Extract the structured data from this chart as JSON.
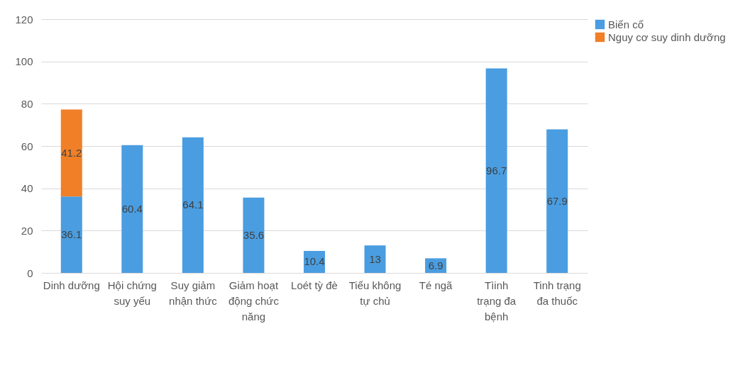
{
  "chart_data": {
    "type": "bar",
    "stacked": true,
    "categories": [
      "Dinh dưỡng",
      "Hội chứng suy yếu",
      "Suy giảm nhận thức",
      "Giảm hoạt động chức năng",
      "Loét tỳ đè",
      "Tiểu không tự chủ",
      "Té ngã",
      "Tìinh trạng đa bệnh",
      "Tinh trạng đa thuốc"
    ],
    "series": [
      {
        "name": "Biến cố",
        "color": "#4a9de0",
        "values": [
          36.1,
          60.4,
          64.1,
          35.6,
          10.4,
          13,
          6.9,
          96.7,
          67.9
        ]
      },
      {
        "name": "Nguy cơ suy dinh dưỡng",
        "color": "#f07f27",
        "values": [
          41.2,
          null,
          null,
          null,
          null,
          null,
          null,
          null,
          null
        ]
      }
    ],
    "ylim": [
      0,
      120
    ],
    "yticks": [
      0,
      20,
      40,
      60,
      80,
      100,
      120
    ],
    "grid": "y",
    "legend": "right",
    "data_labels": true
  }
}
